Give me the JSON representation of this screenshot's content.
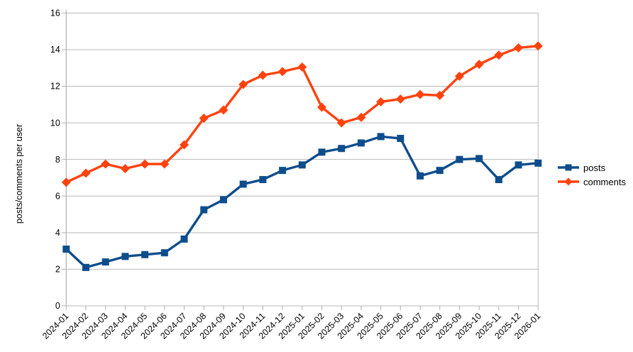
{
  "chart_data": {
    "type": "line",
    "title": "",
    "xlabel": "",
    "ylabel": "posts/comments per user",
    "ylim": [
      0,
      16
    ],
    "yticks": [
      0,
      2,
      4,
      6,
      8,
      10,
      12,
      14,
      16
    ],
    "grid": true,
    "legend_position": "right",
    "categories": [
      "2024-01",
      "2024-02",
      "2024-03",
      "2024-04",
      "2024-05",
      "2024-06",
      "2024-07",
      "2024-08",
      "2024-09",
      "2024-10",
      "2024-11",
      "2024-12",
      "2025-01",
      "2025-02",
      "2025-03",
      "2025-04",
      "2025-05",
      "2025-06",
      "2025-07",
      "2025-08",
      "2025-09",
      "2025-10",
      "2025-11",
      "2025-12",
      "2026-01"
    ],
    "series": [
      {
        "name": "posts",
        "marker": "square",
        "color": "#0d4d8c",
        "values": [
          3.1,
          2.1,
          2.4,
          2.7,
          2.8,
          2.9,
          3.65,
          5.25,
          5.8,
          6.65,
          6.9,
          7.4,
          7.7,
          8.4,
          8.6,
          8.9,
          9.25,
          9.15,
          7.1,
          7.4,
          8.0,
          8.05,
          6.9,
          7.7,
          7.8
        ]
      },
      {
        "name": "comments",
        "marker": "diamond",
        "color": "#ff420e",
        "values": [
          6.75,
          7.25,
          7.75,
          7.5,
          7.75,
          7.75,
          8.8,
          10.25,
          10.7,
          12.1,
          12.6,
          12.8,
          13.05,
          10.85,
          10.0,
          10.3,
          11.15,
          11.3,
          11.55,
          11.5,
          12.55,
          13.2,
          13.7,
          14.1,
          14.2
        ]
      }
    ],
    "colors": {
      "background": "#ffffff",
      "gridline": "#b9b9b9",
      "axis": "#b0b0b0",
      "text": "#000000"
    }
  }
}
